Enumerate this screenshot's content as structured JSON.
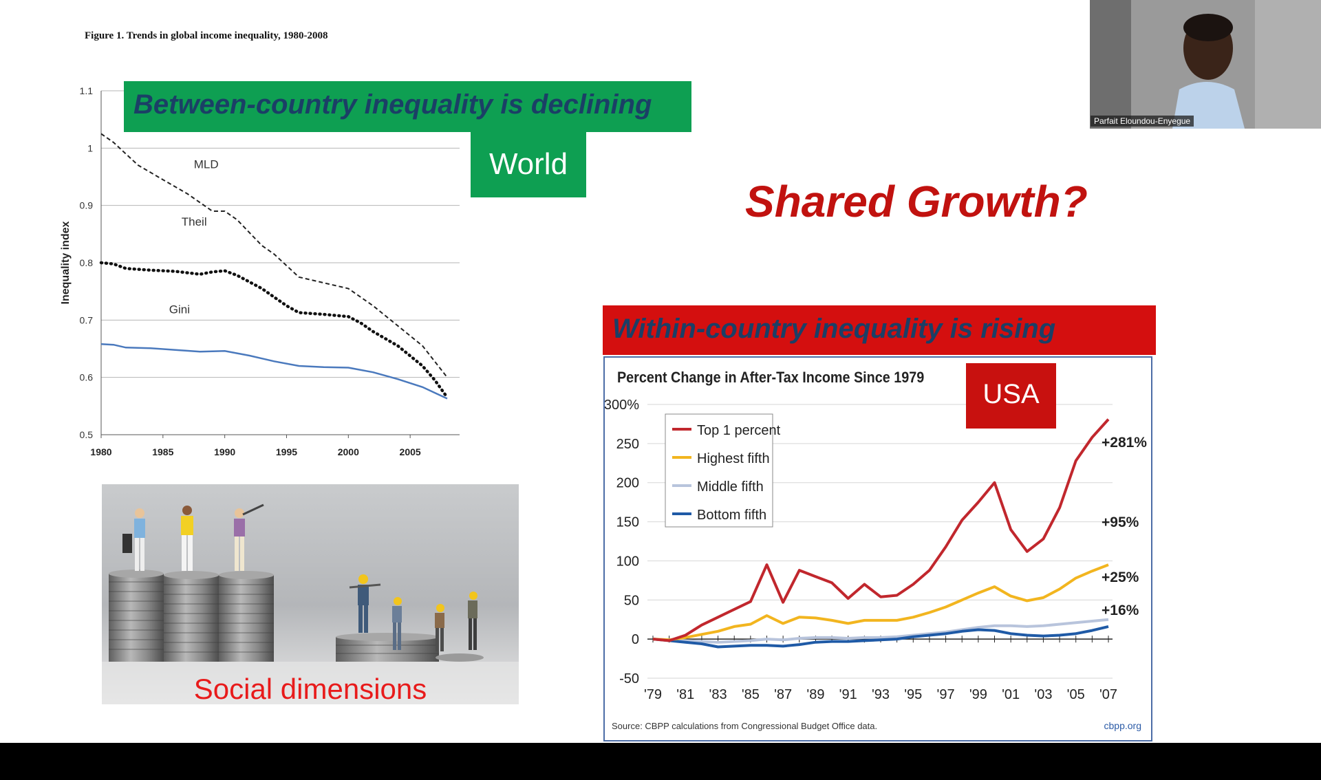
{
  "slide": {
    "figure_caption": "Figure 1. Trends in global income inequality, 1980-2008",
    "between_banner": "Between-country inequality is declining",
    "world_label": "World",
    "shared_growth": "Shared Growth?",
    "within_banner": "Within-country inequality is rising",
    "usa_label": "USA",
    "photo_caption": "Social dimensions",
    "webcam_name": "Parfait Eloundou-Enyegue"
  },
  "colors": {
    "green_banner": "#0e9f52",
    "red_banner": "#d40f0f",
    "banner_text": "#1b3f66",
    "accent_red": "#c1120f"
  },
  "chart_data": [
    {
      "type": "line",
      "ylabel": "Inequality index",
      "xlabel": "",
      "xlim": [
        1980,
        2009
      ],
      "ylim": [
        0.5,
        1.1
      ],
      "x_ticks": [
        1980,
        1985,
        1990,
        1995,
        2000,
        2005
      ],
      "y_ticks": [
        "0.5",
        "0.6",
        "0.7",
        "0.8",
        "0.9",
        "1",
        "1.1"
      ],
      "grid": "horizontal",
      "series": [
        {
          "name": "MLD",
          "style": "dashed",
          "points": [
            [
              1980,
              1.025
            ],
            [
              1981,
              1.01
            ],
            [
              1982,
              0.99
            ],
            [
              1983,
              0.97
            ],
            [
              1985,
              0.945
            ],
            [
              1987,
              0.92
            ],
            [
              1988,
              0.905
            ],
            [
              1989,
              0.89
            ],
            [
              1990,
              0.89
            ],
            [
              1991,
              0.875
            ],
            [
              1993,
              0.83
            ],
            [
              1994,
              0.815
            ],
            [
              1996,
              0.775
            ],
            [
              1998,
              0.765
            ],
            [
              2000,
              0.755
            ],
            [
              2002,
              0.725
            ],
            [
              2004,
              0.69
            ],
            [
              2006,
              0.655
            ],
            [
              2008,
              0.6
            ]
          ]
        },
        {
          "name": "Theil",
          "style": "dotted",
          "points": [
            [
              1980,
              0.8
            ],
            [
              1981,
              0.798
            ],
            [
              1982,
              0.79
            ],
            [
              1984,
              0.787
            ],
            [
              1986,
              0.785
            ],
            [
              1988,
              0.78
            ],
            [
              1989,
              0.784
            ],
            [
              1990,
              0.786
            ],
            [
              1991,
              0.778
            ],
            [
              1993,
              0.755
            ],
            [
              1994,
              0.74
            ],
            [
              1995,
              0.725
            ],
            [
              1996,
              0.713
            ],
            [
              1998,
              0.71
            ],
            [
              2000,
              0.706
            ],
            [
              2001,
              0.695
            ],
            [
              2002,
              0.68
            ],
            [
              2004,
              0.655
            ],
            [
              2006,
              0.62
            ],
            [
              2007,
              0.595
            ],
            [
              2008,
              0.565
            ]
          ]
        },
        {
          "name": "Gini",
          "style": "solid",
          "points": [
            [
              1980,
              0.658
            ],
            [
              1981,
              0.657
            ],
            [
              1982,
              0.652
            ],
            [
              1984,
              0.651
            ],
            [
              1986,
              0.648
            ],
            [
              1988,
              0.645
            ],
            [
              1990,
              0.646
            ],
            [
              1992,
              0.638
            ],
            [
              1994,
              0.628
            ],
            [
              1996,
              0.62
            ],
            [
              1998,
              0.618
            ],
            [
              2000,
              0.617
            ],
            [
              2002,
              0.609
            ],
            [
              2004,
              0.597
            ],
            [
              2006,
              0.583
            ],
            [
              2008,
              0.563
            ]
          ]
        }
      ]
    },
    {
      "type": "line",
      "title": "Percent Change in After-Tax Income Since 1979",
      "ylim": [
        -50,
        300
      ],
      "y_ticks": [
        "-50",
        "0",
        "50",
        "100",
        "150",
        "200",
        "250",
        "300%"
      ],
      "categories": [
        "'79",
        "'80",
        "'81",
        "'82",
        "'83",
        "'84",
        "'85",
        "'86",
        "'87",
        "'88",
        "'89",
        "'90",
        "'91",
        "'92",
        "'93",
        "'94",
        "'95",
        "'96",
        "'97",
        "'98",
        "'99",
        "'00",
        "'01",
        "'02",
        "'03",
        "'04",
        "'05",
        "'06",
        "'07"
      ],
      "x_tick_labels": [
        "'79",
        "'81",
        "'83",
        "'85",
        "'87",
        "'89",
        "'91",
        "'93",
        "'95",
        "'97",
        "'99",
        "'01",
        "'03",
        "'05",
        "'07"
      ],
      "legend": "top-left",
      "source": "Source: CBPP calculations from Congressional Budget Office data.",
      "source_site": "cbpp.org",
      "series": [
        {
          "name": "Top 1 percent",
          "color": "#c1272d",
          "end_label": "+281%",
          "values": [
            0,
            -2,
            5,
            18,
            28,
            38,
            48,
            95,
            47,
            88,
            80,
            72,
            52,
            70,
            54,
            56,
            70,
            88,
            118,
            152,
            175,
            200,
            140,
            112,
            128,
            168,
            228,
            258,
            281
          ]
        },
        {
          "name": "Highest fifth",
          "color": "#f2b51f",
          "end_label": "+95%",
          "values": [
            0,
            -1,
            2,
            6,
            10,
            16,
            19,
            30,
            20,
            28,
            27,
            24,
            20,
            24,
            24,
            24,
            28,
            34,
            41,
            50,
            59,
            67,
            55,
            49,
            53,
            64,
            78,
            87,
            95
          ]
        },
        {
          "name": "Middle fifth",
          "color": "#b8c4dc",
          "end_label": "+25%",
          "values": [
            0,
            -1,
            -2,
            -3,
            -4,
            -3,
            -2,
            0,
            -1,
            1,
            2,
            2,
            1,
            2,
            2,
            3,
            5,
            7,
            9,
            12,
            15,
            17,
            17,
            16,
            17,
            19,
            21,
            23,
            25
          ]
        },
        {
          "name": "Bottom fifth",
          "color": "#1f5aa6",
          "end_label": "+16%",
          "values": [
            0,
            -2,
            -4,
            -6,
            -10,
            -9,
            -8,
            -8,
            -9,
            -7,
            -4,
            -3,
            -3,
            -2,
            -1,
            0,
            3,
            5,
            7,
            10,
            12,
            11,
            7,
            5,
            4,
            5,
            7,
            11,
            16
          ]
        }
      ]
    }
  ]
}
